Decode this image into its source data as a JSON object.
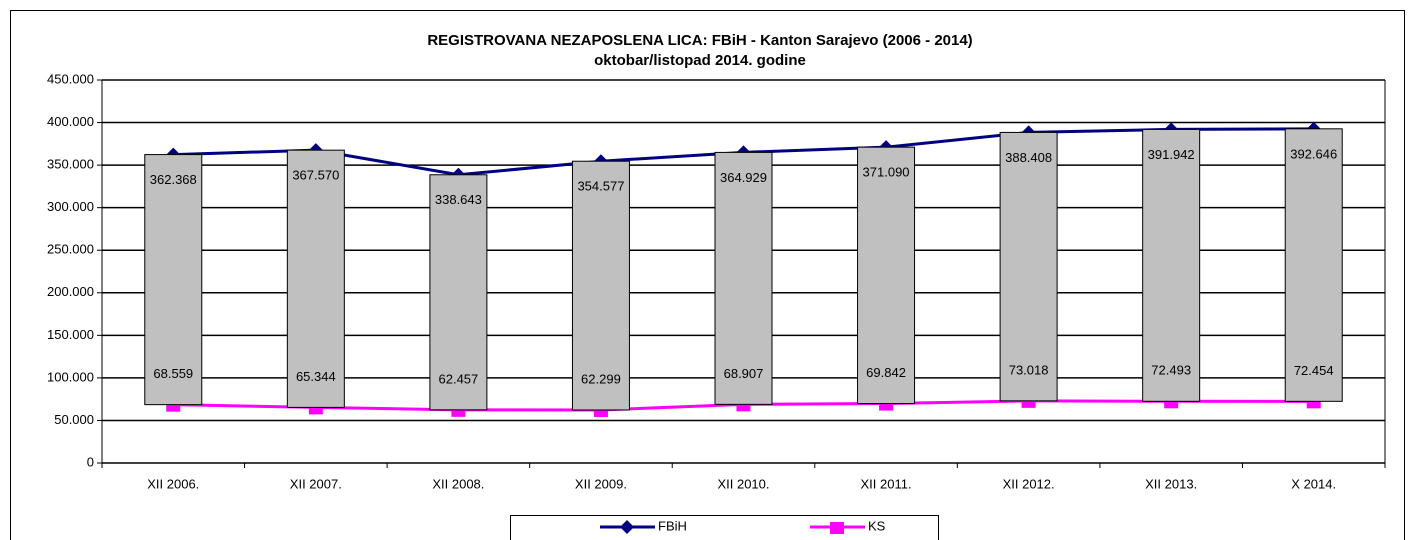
{
  "chart_data": {
    "type": "line",
    "title": "REGISTROVANA NEZAPOSLENA LICA: FBiH - Kanton Sarajevo (2006 - 2014)",
    "subtitle": "oktobar/listopad  2014. godine",
    "categories": [
      "XII 2006.",
      "XII 2007.",
      "XII 2008.",
      "XII 2009.",
      "XII 2010.",
      "XII  2011.",
      "XII 2012.",
      "XII 2013.",
      "X 2014."
    ],
    "series": [
      {
        "name": "FBiH",
        "color": "#000080",
        "marker": "diamond",
        "values": [
          362368,
          367570,
          338643,
          354577,
          364929,
          371090,
          388408,
          391942,
          392646
        ],
        "value_labels": [
          "362.368",
          "367.570",
          "338.643",
          "354.577",
          "364.929",
          "371.090",
          "388.408",
          "391.942",
          "392.646"
        ]
      },
      {
        "name": "KS",
        "color": "#ff00ff",
        "marker": "square",
        "values": [
          68559,
          65344,
          62457,
          62299,
          68907,
          69842,
          73018,
          72493,
          72454
        ],
        "value_labels": [
          "68.559",
          "65.344",
          "62.457",
          "62.299",
          "68.907",
          "69.842",
          "73.018",
          "72.493",
          "72.454"
        ]
      }
    ],
    "updown_bar_color": "#c0c0c0",
    "ylim": [
      0,
      450000
    ],
    "yticks": [
      0,
      {
        "value": 50000,
        "label": "50.000"
      },
      {
        "value": 100000,
        "label": "100.000"
      },
      {
        "value": 150000,
        "label": "150.000"
      },
      {
        "value": 200000,
        "label": "200.000"
      },
      {
        "value": 250000,
        "label": "250.000"
      },
      {
        "value": 300000,
        "label": "300.000"
      },
      {
        "value": 350000,
        "label": "350.000"
      },
      {
        "value": 400000,
        "label": "400.000"
      },
      {
        "value": 450000,
        "label": "450.000"
      }
    ],
    "grid": true,
    "legend": "bottom"
  }
}
